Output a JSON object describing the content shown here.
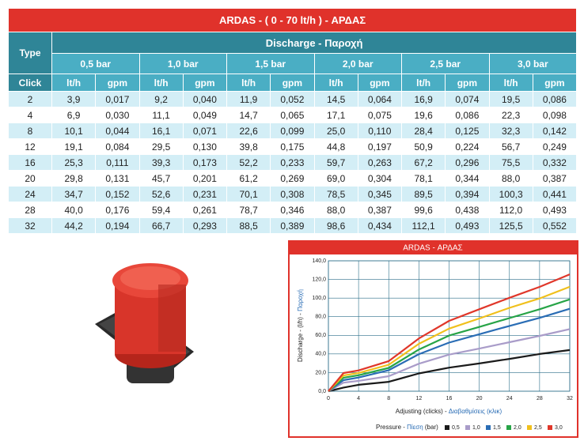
{
  "table": {
    "title": "ARDAS - ( 0 - 70 lt/h )  - ΑΡΔΑΣ",
    "type_label": "Type",
    "discharge_label": "Discharge - Παροχή",
    "click_label": "Click",
    "pressures": [
      "0,5 bar",
      "1,0 bar",
      "1,5 bar",
      "2,0 bar",
      "2,5 bar",
      "3,0 bar"
    ],
    "units": [
      "lt/h",
      "gpm"
    ],
    "rows": [
      [
        "2",
        "3,9",
        "0,017",
        "9,2",
        "0,040",
        "11,9",
        "0,052",
        "14,5",
        "0,064",
        "16,9",
        "0,074",
        "19,5",
        "0,086"
      ],
      [
        "4",
        "6,9",
        "0,030",
        "11,1",
        "0,049",
        "14,7",
        "0,065",
        "17,1",
        "0,075",
        "19,6",
        "0,086",
        "22,3",
        "0,098"
      ],
      [
        "8",
        "10,1",
        "0,044",
        "16,1",
        "0,071",
        "22,6",
        "0,099",
        "25,0",
        "0,110",
        "28,4",
        "0,125",
        "32,3",
        "0,142"
      ],
      [
        "12",
        "19,1",
        "0,084",
        "29,5",
        "0,130",
        "39,8",
        "0,175",
        "44,8",
        "0,197",
        "50,9",
        "0,224",
        "56,7",
        "0,249"
      ],
      [
        "16",
        "25,3",
        "0,111",
        "39,3",
        "0,173",
        "52,2",
        "0,233",
        "59,7",
        "0,263",
        "67,2",
        "0,296",
        "75,5",
        "0,332"
      ],
      [
        "20",
        "29,8",
        "0,131",
        "45,7",
        "0,201",
        "61,2",
        "0,269",
        "69,0",
        "0,304",
        "78,1",
        "0,344",
        "88,0",
        "0,387"
      ],
      [
        "24",
        "34,7",
        "0,152",
        "52,6",
        "0,231",
        "70,1",
        "0,308",
        "78,5",
        "0,345",
        "89,5",
        "0,394",
        "100,3",
        "0,441"
      ],
      [
        "28",
        "40,0",
        "0,176",
        "59,4",
        "0,261",
        "78,7",
        "0,346",
        "88,0",
        "0,387",
        "99,6",
        "0,438",
        "112,0",
        "0,493"
      ],
      [
        "32",
        "44,2",
        "0,194",
        "66,7",
        "0,293",
        "88,5",
        "0,389",
        "98,6",
        "0,434",
        "112,1",
        "0,493",
        "125,5",
        "0,552"
      ]
    ]
  },
  "chart_data": {
    "type": "line",
    "title": "ARDAS - ΑΡΔΑΣ",
    "y_label": [
      "Discharge - (l/h) -",
      "Παροχή"
    ],
    "x_label": [
      "Adjusting (clicks) -",
      "Διαβαθμίσεις (κλικ)"
    ],
    "legend_title": [
      "Pressure -",
      "Πίεση",
      "(bar)"
    ],
    "x": [
      0,
      2,
      4,
      8,
      12,
      16,
      20,
      24,
      28,
      32
    ],
    "xlim": [
      0,
      32
    ],
    "xticks": [
      0,
      4,
      8,
      12,
      16,
      20,
      24,
      28,
      32
    ],
    "ylim": [
      0,
      140
    ],
    "yticks": [
      {
        "value": 0,
        "label": "0,0"
      },
      {
        "value": 20,
        "label": "20,0"
      },
      {
        "value": 40,
        "label": "40,0"
      },
      {
        "value": 60,
        "label": "60,0"
      },
      {
        "value": 80,
        "label": "80,0"
      },
      {
        "value": 100,
        "label": "100,0"
      },
      {
        "value": 120,
        "label": "120,0"
      },
      {
        "value": 140,
        "label": "140,0"
      }
    ],
    "grid": true,
    "series": [
      {
        "name": "0,5",
        "color": "#1a1a1a",
        "values": [
          0,
          3.9,
          6.9,
          10.1,
          19.1,
          25.3,
          29.8,
          34.7,
          40.0,
          44.2
        ]
      },
      {
        "name": "1,0",
        "color": "#a99cc9",
        "values": [
          0,
          9.2,
          11.1,
          16.1,
          29.5,
          39.3,
          45.7,
          52.6,
          59.4,
          66.7
        ]
      },
      {
        "name": "1,5",
        "color": "#2a6db5",
        "values": [
          0,
          11.9,
          14.7,
          22.6,
          39.8,
          52.2,
          61.2,
          70.1,
          78.7,
          88.5
        ]
      },
      {
        "name": "2,0",
        "color": "#27a447",
        "values": [
          0,
          14.5,
          17.1,
          25.0,
          44.8,
          59.7,
          69.0,
          78.5,
          88.0,
          98.6
        ]
      },
      {
        "name": "2,5",
        "color": "#f0c01c",
        "values": [
          0,
          16.9,
          19.6,
          28.4,
          50.9,
          67.2,
          78.1,
          89.5,
          99.6,
          112.1
        ]
      },
      {
        "name": "3,0",
        "color": "#e0372a",
        "values": [
          0,
          19.5,
          22.3,
          32.3,
          56.7,
          75.5,
          88.0,
          100.3,
          112.0,
          125.5
        ]
      }
    ]
  }
}
